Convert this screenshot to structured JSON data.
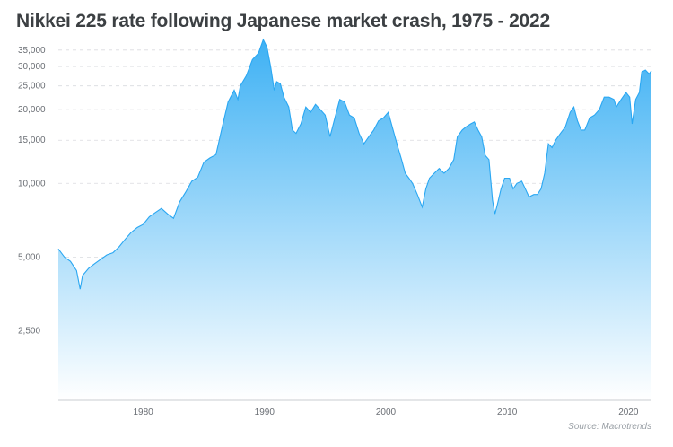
{
  "title": "Nikkei 225 rate following Japanese market crash, 1975 - 2022",
  "source": "Source: Macrotrends",
  "colors": {
    "line": "#2aa7f2",
    "fill_top": "#3eb1f4",
    "fill_bottom": "#ffffff",
    "grid": "#d9dbdf",
    "axis": "#c9ccd1"
  },
  "chart_data": {
    "type": "area",
    "title": "Nikkei 225 rate following Japanese market crash, 1975 - 2022",
    "xlabel": "",
    "ylabel": "",
    "y_scale": "log",
    "xlim": [
      1973.0,
      2021.9
    ],
    "ylim": [
      1300,
      40000
    ],
    "grid": "horizontal dashed",
    "legend": "none",
    "x_ticks": [
      1980,
      1990,
      2000,
      2010,
      2020
    ],
    "y_ticks": [
      {
        "value": 2500,
        "label": "2,500"
      },
      {
        "value": 5000,
        "label": "5,000"
      },
      {
        "value": 10000,
        "label": "10,000"
      },
      {
        "value": 15000,
        "label": "15,000"
      },
      {
        "value": 20000,
        "label": "20,000"
      },
      {
        "value": 25000,
        "label": "25,000"
      },
      {
        "value": 30000,
        "label": "30,000"
      },
      {
        "value": 35000,
        "label": "35,000"
      }
    ],
    "series": [
      {
        "x": [
          1973.0,
          1973.5,
          1974.0,
          1974.5,
          1974.8,
          1975.0,
          1975.5,
          1976.0,
          1976.5,
          1977.0,
          1977.5,
          1978.0,
          1978.5,
          1979.0,
          1979.5,
          1980.0,
          1980.5,
          1981.0,
          1981.5,
          1982.0,
          1982.5,
          1983.0,
          1983.5,
          1984.0,
          1984.5,
          1985.0,
          1985.5,
          1986.0,
          1986.5,
          1987.0,
          1987.5,
          1987.8,
          1988.0,
          1988.5,
          1989.0,
          1989.5,
          1989.9,
          1990.2,
          1990.5,
          1990.8,
          1991.0,
          1991.3,
          1991.6,
          1992.0,
          1992.3,
          1992.6,
          1993.0,
          1993.4,
          1993.8,
          1994.2,
          1994.6,
          1995.0,
          1995.4,
          1995.8,
          1996.2,
          1996.6,
          1997.0,
          1997.4,
          1997.8,
          1998.2,
          1998.6,
          1999.0,
          1999.4,
          1999.8,
          2000.2,
          2000.6,
          2001.0,
          2001.3,
          2001.6,
          2001.9,
          2002.2,
          2002.6,
          2003.0,
          2003.3,
          2003.6,
          2004.0,
          2004.4,
          2004.8,
          2005.2,
          2005.6,
          2005.9,
          2006.3,
          2006.6,
          2007.0,
          2007.3,
          2007.6,
          2007.9,
          2008.2,
          2008.5,
          2008.8,
          2009.0,
          2009.2,
          2009.5,
          2009.8,
          2010.2,
          2010.5,
          2010.8,
          2011.2,
          2011.5,
          2011.8,
          2012.2,
          2012.5,
          2012.8,
          2013.1,
          2013.4,
          2013.7,
          2014.0,
          2014.4,
          2014.8,
          2015.2,
          2015.5,
          2015.8,
          2016.1,
          2016.4,
          2016.8,
          2017.2,
          2017.6,
          2018.0,
          2018.4,
          2018.8,
          2019.0,
          2019.4,
          2019.8,
          2020.1,
          2020.3,
          2020.6,
          2020.9,
          2021.1,
          2021.4,
          2021.7,
          2021.9
        ],
        "values": [
          5400,
          5000,
          4800,
          4400,
          3700,
          4200,
          4500,
          4700,
          4900,
          5100,
          5200,
          5500,
          5900,
          6300,
          6600,
          6800,
          7300,
          7600,
          7900,
          7500,
          7200,
          8400,
          9200,
          10200,
          10600,
          12200,
          12700,
          13100,
          16900,
          21500,
          24000,
          22000,
          25000,
          27500,
          32000,
          34000,
          38600,
          36000,
          30000,
          24000,
          26000,
          25500,
          22500,
          20500,
          16500,
          16000,
          17500,
          20500,
          19500,
          21000,
          20000,
          19000,
          15500,
          18500,
          22000,
          21500,
          19000,
          18500,
          16000,
          14500,
          15500,
          16500,
          18000,
          18500,
          19500,
          16500,
          14000,
          12500,
          11000,
          10500,
          10000,
          9000,
          8000,
          9500,
          10500,
          11000,
          11500,
          11000,
          11500,
          12500,
          15500,
          16500,
          17000,
          17500,
          17800,
          16500,
          15500,
          13000,
          12500,
          8500,
          7500,
          8200,
          9500,
          10500,
          10500,
          9500,
          10000,
          10200,
          9500,
          8800,
          9000,
          9000,
          9500,
          11000,
          14500,
          14000,
          15000,
          16000,
          17000,
          19500,
          20500,
          18000,
          16500,
          16500,
          18500,
          19000,
          20000,
          22500,
          22500,
          22000,
          20500,
          22000,
          23500,
          22500,
          17500,
          22000,
          23500,
          28500,
          29000,
          28000,
          28800
        ]
      }
    ]
  }
}
